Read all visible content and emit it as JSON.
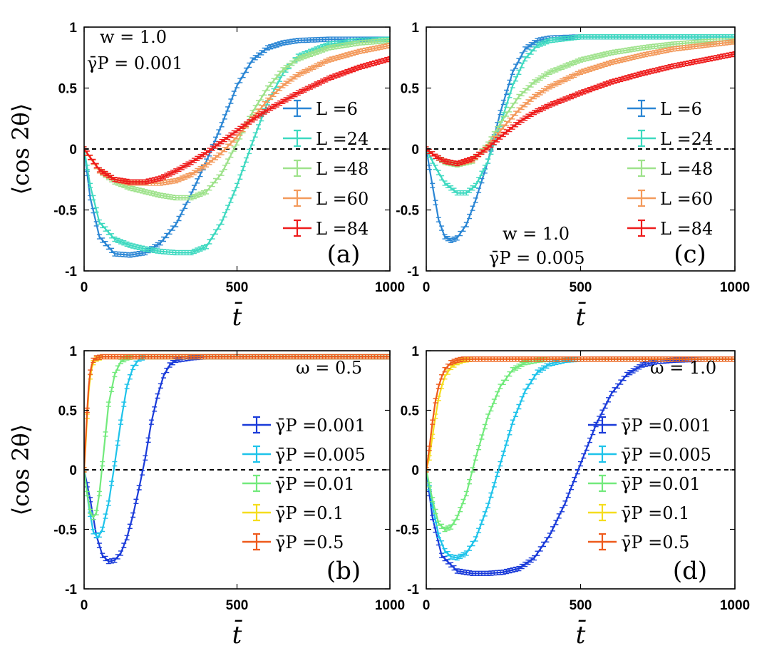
{
  "chart_data": [
    {
      "panel": "a",
      "type": "line",
      "panel_label": "(a)",
      "annotation_lines": [
        "w = 1.0",
        "γ̄P = 0.001"
      ],
      "xlabel": "t̄",
      "ylabel": "⟨cos 2θ⟩",
      "xlim": [
        0,
        1000
      ],
      "ylim": [
        -1,
        1
      ],
      "xticks": [
        "0",
        "500",
        "1000"
      ],
      "yticks": [
        "1",
        "0.5",
        "0",
        "-0.5",
        "-1"
      ],
      "legend_position": "right",
      "series": [
        {
          "name": "L =6",
          "color": "#2b86d4",
          "x": [
            0,
            20,
            50,
            100,
            150,
            200,
            250,
            300,
            350,
            400,
            450,
            500,
            550,
            600,
            650,
            700,
            800,
            900,
            1000
          ],
          "y": [
            0,
            -0.4,
            -0.72,
            -0.86,
            -0.87,
            -0.85,
            -0.77,
            -0.62,
            -0.37,
            -0.1,
            0.2,
            0.52,
            0.73,
            0.83,
            0.87,
            0.89,
            0.9,
            0.9,
            0.9
          ]
        },
        {
          "name": "L =24",
          "color": "#3ed9c0",
          "x": [
            0,
            20,
            50,
            100,
            150,
            200,
            250,
            300,
            350,
            400,
            450,
            500,
            550,
            600,
            650,
            700,
            800,
            900,
            1000
          ],
          "y": [
            0,
            -0.3,
            -0.6,
            -0.74,
            -0.79,
            -0.82,
            -0.84,
            -0.85,
            -0.85,
            -0.8,
            -0.6,
            -0.3,
            0.05,
            0.38,
            0.62,
            0.76,
            0.86,
            0.89,
            0.9
          ]
        },
        {
          "name": "L =48",
          "color": "#9ee28b",
          "x": [
            0,
            50,
            100,
            150,
            200,
            250,
            300,
            350,
            400,
            450,
            500,
            550,
            600,
            650,
            700,
            800,
            900,
            1000
          ],
          "y": [
            0,
            -0.18,
            -0.27,
            -0.32,
            -0.35,
            -0.38,
            -0.4,
            -0.4,
            -0.35,
            -0.2,
            0.05,
            0.3,
            0.5,
            0.65,
            0.74,
            0.83,
            0.87,
            0.89
          ]
        },
        {
          "name": "L =60",
          "color": "#f39a5c",
          "x": [
            0,
            50,
            100,
            150,
            200,
            250,
            300,
            350,
            400,
            450,
            500,
            550,
            600,
            650,
            700,
            800,
            900,
            1000
          ],
          "y": [
            0,
            -0.18,
            -0.25,
            -0.28,
            -0.28,
            -0.28,
            -0.26,
            -0.21,
            -0.13,
            -0.03,
            0.1,
            0.25,
            0.4,
            0.52,
            0.61,
            0.73,
            0.8,
            0.85
          ]
        },
        {
          "name": "L =84",
          "color": "#ee1c1c",
          "x": [
            0,
            50,
            100,
            150,
            200,
            250,
            300,
            350,
            400,
            450,
            500,
            550,
            600,
            650,
            700,
            800,
            900,
            1000
          ],
          "y": [
            0,
            -0.17,
            -0.25,
            -0.27,
            -0.27,
            -0.24,
            -0.18,
            -0.11,
            -0.03,
            0.06,
            0.15,
            0.24,
            0.32,
            0.39,
            0.46,
            0.58,
            0.67,
            0.74
          ]
        }
      ]
    },
    {
      "panel": "c",
      "type": "line",
      "panel_label": "(c)",
      "annotation_lines": [
        "w = 1.0",
        "γ̄P = 0.005"
      ],
      "xlabel": "t̄",
      "ylabel": "",
      "xlim": [
        0,
        1000
      ],
      "ylim": [
        -1,
        1
      ],
      "xticks": [
        "0",
        "500",
        "1000"
      ],
      "yticks": [
        "1",
        "0.5",
        "0",
        "-0.5",
        "-1"
      ],
      "legend_position": "right",
      "series": [
        {
          "name": "L =6",
          "color": "#2b86d4",
          "x": [
            0,
            20,
            40,
            60,
            80,
            100,
            130,
            160,
            200,
            240,
            280,
            320,
            360,
            400,
            500,
            600,
            800,
            1000
          ],
          "y": [
            0,
            -0.3,
            -0.58,
            -0.72,
            -0.75,
            -0.73,
            -0.62,
            -0.42,
            -0.1,
            0.3,
            0.63,
            0.82,
            0.89,
            0.91,
            0.92,
            0.92,
            0.92,
            0.92
          ]
        },
        {
          "name": "L =24",
          "color": "#3ed9c0",
          "x": [
            0,
            30,
            60,
            100,
            130,
            160,
            200,
            240,
            280,
            320,
            360,
            400,
            500,
            600,
            800,
            1000
          ],
          "y": [
            0,
            -0.15,
            -0.28,
            -0.36,
            -0.36,
            -0.3,
            -0.1,
            0.2,
            0.52,
            0.74,
            0.85,
            0.89,
            0.92,
            0.92,
            0.92,
            0.92
          ]
        },
        {
          "name": "L =48",
          "color": "#9ee28b",
          "x": [
            0,
            30,
            60,
            100,
            150,
            200,
            250,
            300,
            350,
            400,
            500,
            600,
            700,
            800,
            900,
            1000
          ],
          "y": [
            0,
            -0.06,
            -0.11,
            -0.13,
            -0.1,
            0.04,
            0.25,
            0.43,
            0.55,
            0.63,
            0.73,
            0.79,
            0.83,
            0.86,
            0.88,
            0.89
          ]
        },
        {
          "name": "L =60",
          "color": "#f39a5c",
          "x": [
            0,
            30,
            60,
            100,
            150,
            200,
            250,
            300,
            350,
            400,
            500,
            600,
            700,
            800,
            900,
            1000
          ],
          "y": [
            0,
            -0.06,
            -0.1,
            -0.12,
            -0.09,
            0.02,
            0.18,
            0.32,
            0.43,
            0.51,
            0.63,
            0.71,
            0.77,
            0.82,
            0.85,
            0.88
          ]
        },
        {
          "name": "L =84",
          "color": "#ee1c1c",
          "x": [
            0,
            30,
            60,
            100,
            150,
            200,
            250,
            300,
            350,
            400,
            500,
            600,
            700,
            800,
            900,
            1000
          ],
          "y": [
            0,
            -0.06,
            -0.1,
            -0.12,
            -0.08,
            0.01,
            0.12,
            0.22,
            0.3,
            0.36,
            0.46,
            0.55,
            0.62,
            0.68,
            0.73,
            0.78
          ]
        }
      ]
    },
    {
      "panel": "b",
      "type": "line",
      "panel_label": "(b)",
      "annotation_lines": [
        "ω = 0.5"
      ],
      "xlabel": "t̄",
      "ylabel": "⟨cos 2θ⟩",
      "xlim": [
        0,
        1000
      ],
      "ylim": [
        -1,
        1
      ],
      "xticks": [
        "0",
        "500",
        "1000"
      ],
      "yticks": [
        "1",
        "0.5",
        "0",
        "-0.5",
        "-1"
      ],
      "legend_position": "right",
      "series": [
        {
          "name": "γ̄P =0.001",
          "color": "#1a3bd9",
          "x": [
            0,
            20,
            40,
            60,
            80,
            100,
            120,
            140,
            160,
            180,
            200,
            220,
            240,
            260,
            280,
            300,
            350,
            400,
            500,
            700,
            1000
          ],
          "y": [
            0,
            -0.25,
            -0.55,
            -0.72,
            -0.77,
            -0.76,
            -0.7,
            -0.57,
            -0.38,
            -0.15,
            0.1,
            0.4,
            0.62,
            0.79,
            0.88,
            0.92,
            0.94,
            0.95,
            0.95,
            0.95,
            0.95
          ]
        },
        {
          "name": "γ̄P =0.005",
          "color": "#1ec3ea",
          "x": [
            0,
            15,
            30,
            45,
            60,
            80,
            100,
            120,
            140,
            160,
            180,
            200,
            250,
            300,
            1000
          ],
          "y": [
            0,
            -0.3,
            -0.52,
            -0.57,
            -0.5,
            -0.28,
            0.05,
            0.4,
            0.7,
            0.86,
            0.93,
            0.95,
            0.95,
            0.95,
            0.95
          ]
        },
        {
          "name": "γ̄P =0.01",
          "color": "#72ea7c",
          "x": [
            0,
            10,
            20,
            30,
            40,
            50,
            60,
            70,
            80,
            100,
            120,
            140,
            160,
            200,
            1000
          ],
          "y": [
            0,
            -0.2,
            -0.35,
            -0.4,
            -0.36,
            -0.2,
            0.05,
            0.3,
            0.55,
            0.8,
            0.91,
            0.94,
            0.95,
            0.95,
            0.95
          ]
        },
        {
          "name": "γ̄P =0.1",
          "color": "#f5dd1e",
          "x": [
            0,
            5,
            10,
            15,
            20,
            25,
            30,
            40,
            60,
            80,
            1000
          ],
          "y": [
            0,
            0.2,
            0.45,
            0.65,
            0.78,
            0.85,
            0.9,
            0.93,
            0.95,
            0.95,
            0.95
          ]
        },
        {
          "name": "γ̄P =0.5",
          "color": "#ee5a1c",
          "x": [
            0,
            5,
            10,
            15,
            20,
            25,
            30,
            40,
            60,
            80,
            1000
          ],
          "y": [
            0,
            0.25,
            0.5,
            0.7,
            0.82,
            0.88,
            0.92,
            0.94,
            0.95,
            0.95,
            0.95
          ]
        }
      ]
    },
    {
      "panel": "d",
      "type": "line",
      "panel_label": "(d)",
      "annotation_lines": [
        "ω = 1.0"
      ],
      "xlabel": "t̄",
      "ylabel": "",
      "xlim": [
        0,
        1000
      ],
      "ylim": [
        -1,
        1
      ],
      "xticks": [
        "0",
        "500",
        "1000"
      ],
      "yticks": [
        "1",
        "0.5",
        "0",
        "-0.5",
        "-1"
      ],
      "legend_position": "right",
      "series": [
        {
          "name": "γ̄P =0.001",
          "color": "#1a3bd9",
          "x": [
            0,
            20,
            50,
            100,
            150,
            200,
            250,
            300,
            350,
            400,
            450,
            500,
            550,
            600,
            650,
            700,
            750,
            800,
            900,
            1000
          ],
          "y": [
            0,
            -0.4,
            -0.72,
            -0.85,
            -0.87,
            -0.87,
            -0.86,
            -0.83,
            -0.74,
            -0.55,
            -0.28,
            0.05,
            0.38,
            0.64,
            0.8,
            0.88,
            0.91,
            0.92,
            0.93,
            0.93
          ]
        },
        {
          "name": "γ̄P =0.005",
          "color": "#1ec3ea",
          "x": [
            0,
            20,
            40,
            60,
            80,
            100,
            130,
            160,
            200,
            240,
            280,
            320,
            360,
            400,
            450,
            500,
            600,
            1000
          ],
          "y": [
            0,
            -0.3,
            -0.55,
            -0.68,
            -0.73,
            -0.74,
            -0.7,
            -0.58,
            -0.3,
            0.05,
            0.4,
            0.66,
            0.82,
            0.89,
            0.92,
            0.93,
            0.93,
            0.93
          ]
        },
        {
          "name": "γ̄P =0.01",
          "color": "#72ea7c",
          "x": [
            0,
            20,
            40,
            60,
            80,
            100,
            130,
            160,
            200,
            240,
            280,
            320,
            360,
            400,
            500,
            1000
          ],
          "y": [
            0,
            -0.25,
            -0.45,
            -0.5,
            -0.48,
            -0.4,
            -0.2,
            0.1,
            0.45,
            0.7,
            0.84,
            0.9,
            0.92,
            0.93,
            0.93,
            0.93
          ]
        },
        {
          "name": "γ̄P =0.1",
          "color": "#f5dd1e",
          "x": [
            0,
            10,
            20,
            30,
            40,
            50,
            60,
            80,
            100,
            120,
            150,
            1000
          ],
          "y": [
            0,
            0.1,
            0.28,
            0.45,
            0.6,
            0.7,
            0.78,
            0.86,
            0.9,
            0.92,
            0.93,
            0.93
          ]
        },
        {
          "name": "γ̄P =0.5",
          "color": "#ee5a1c",
          "x": [
            0,
            10,
            20,
            30,
            40,
            50,
            60,
            80,
            100,
            120,
            150,
            1000
          ],
          "y": [
            0,
            0.18,
            0.4,
            0.58,
            0.7,
            0.78,
            0.84,
            0.9,
            0.92,
            0.93,
            0.93,
            0.93
          ]
        }
      ]
    }
  ]
}
